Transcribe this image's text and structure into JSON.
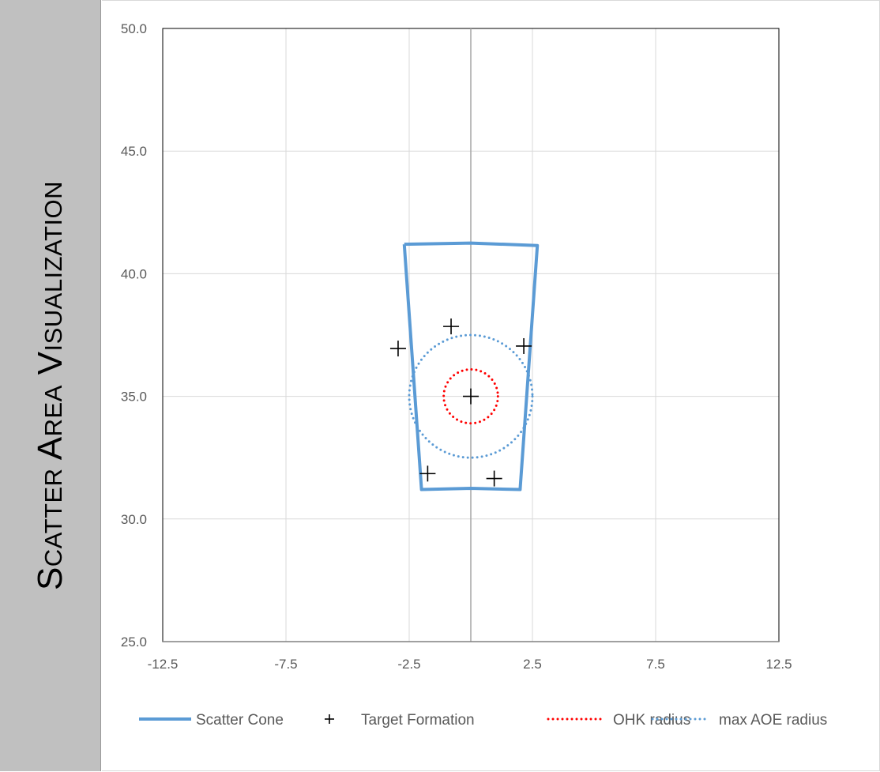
{
  "side_title": "Scatter Area Visualization",
  "chart_data": {
    "type": "scatter",
    "xlim": [
      -12.5,
      12.5
    ],
    "ylim": [
      25.0,
      50.0
    ],
    "x_ticks": [
      "-12.5",
      "-7.5",
      "-2.5",
      "2.5",
      "7.5",
      "12.5"
    ],
    "y_ticks": [
      "25.0",
      "30.0",
      "35.0",
      "40.0",
      "45.0",
      "50.0"
    ],
    "grid": true,
    "legend_position": "bottom",
    "series": [
      {
        "name": "Scatter Cone",
        "style": "solid-line",
        "color": "#5b9bd5",
        "points": [
          [
            -2.7,
            41.2
          ],
          [
            0.0,
            41.25
          ],
          [
            2.7,
            41.15
          ],
          [
            2.0,
            31.2
          ],
          [
            0.0,
            31.25
          ],
          [
            -2.0,
            31.2
          ],
          [
            -2.7,
            41.2
          ]
        ]
      },
      {
        "name": "Target Formation",
        "style": "plus-marker",
        "color": "#000000",
        "points": [
          [
            0.0,
            35.0
          ],
          [
            -0.8,
            37.85
          ],
          [
            -2.95,
            36.95
          ],
          [
            2.15,
            37.05
          ],
          [
            -1.75,
            31.85
          ],
          [
            0.95,
            31.65
          ]
        ]
      },
      {
        "name": "OHK radius",
        "style": "dotted-circle",
        "color": "#ff0000",
        "center": [
          0.0,
          35.0
        ],
        "radius": 1.1
      },
      {
        "name": "max AOE radius",
        "style": "dotted-circle",
        "color": "#5b9bd5",
        "center": [
          0.0,
          35.0
        ],
        "radius": 2.5
      }
    ]
  }
}
